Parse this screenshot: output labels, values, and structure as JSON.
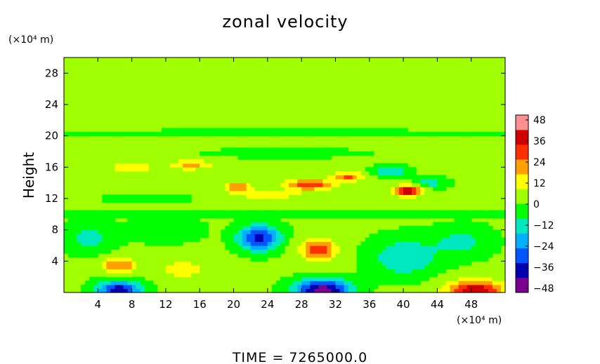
{
  "chart_data": {
    "type": "heatmap",
    "title": "zonal velocity",
    "ylabel": "Height",
    "xlabel": "",
    "x_unit": "(×10⁴ m)",
    "y_unit": "(×10⁴ m)",
    "xlim": [
      0,
      52
    ],
    "ylim": [
      0,
      30
    ],
    "x_ticks": [
      4,
      8,
      12,
      16,
      20,
      24,
      28,
      32,
      36,
      40,
      44,
      48
    ],
    "y_ticks": [
      4,
      8,
      12,
      16,
      20,
      24,
      28
    ],
    "colorbar": {
      "min": -48,
      "max": 48,
      "ticks": [
        48,
        36,
        24,
        12,
        0,
        -12,
        -24,
        -36,
        -48
      ],
      "colors": [
        "#7a0090",
        "#0000b0",
        "#0055ff",
        "#00b0ff",
        "#00e8c0",
        "#00ff00",
        "#a0ff00",
        "#ffff00",
        "#ffa000",
        "#ff3000",
        "#d00000",
        "#ff9090"
      ]
    },
    "background_value": 0,
    "features": [
      {
        "x": 6.5,
        "y": 0.4,
        "value": -36,
        "sx": 2.6,
        "sy": 1.1
      },
      {
        "x": 30.5,
        "y": 0.4,
        "value": -44,
        "sx": 3.2,
        "sy": 1.3
      },
      {
        "x": 48.5,
        "y": 0.4,
        "value": 38,
        "sx": 3.5,
        "sy": 1.2
      },
      {
        "x": 23.0,
        "y": 7.0,
        "value": -34,
        "sx": 2.4,
        "sy": 1.6
      },
      {
        "x": 30.0,
        "y": 5.5,
        "value": 30,
        "sx": 2.2,
        "sy": 1.4
      },
      {
        "x": 6.5,
        "y": 3.5,
        "value": 26,
        "sx": 2.0,
        "sy": 1.0
      },
      {
        "x": 14.0,
        "y": 3.0,
        "value": 14,
        "sx": 2.5,
        "sy": 1.2
      },
      {
        "x": 40.0,
        "y": 4.5,
        "value": -14,
        "sx": 4.0,
        "sy": 2.5
      },
      {
        "x": 47.0,
        "y": 6.5,
        "value": -10,
        "sx": 3.5,
        "sy": 2.0
      },
      {
        "x": 3.0,
        "y": 7.0,
        "value": -10,
        "sx": 3.0,
        "sy": 2.0
      },
      {
        "x": 12.0,
        "y": 8.0,
        "value": -8,
        "sx": 4.0,
        "sy": 1.5
      },
      {
        "x": 40.5,
        "y": 13.0,
        "value": 40,
        "sx": 1.8,
        "sy": 0.7
      },
      {
        "x": 29.0,
        "y": 13.8,
        "value": 30,
        "sx": 3.0,
        "sy": 0.7
      },
      {
        "x": 20.5,
        "y": 13.5,
        "value": 24,
        "sx": 1.6,
        "sy": 0.6
      },
      {
        "x": 33.5,
        "y": 14.8,
        "value": 26,
        "sx": 1.8,
        "sy": 0.6
      },
      {
        "x": 15.0,
        "y": 16.3,
        "value": 20,
        "sx": 2.5,
        "sy": 0.6
      },
      {
        "x": 8.0,
        "y": 16.0,
        "value": 14,
        "sx": 3.0,
        "sy": 0.8
      },
      {
        "x": 38.5,
        "y": 15.5,
        "value": -16,
        "sx": 2.0,
        "sy": 0.6
      },
      {
        "x": 43.0,
        "y": 14.0,
        "value": -12,
        "sx": 2.0,
        "sy": 0.7
      },
      {
        "x": 24.0,
        "y": 12.5,
        "value": 12,
        "sx": 5.0,
        "sy": 0.6
      },
      {
        "x": 26.0,
        "y": 17.8,
        "value": -8,
        "sx": 8.0,
        "sy": 0.5
      },
      {
        "x": 10.0,
        "y": 12.0,
        "value": -6,
        "sx": 5.0,
        "sy": 0.6
      },
      {
        "x": 26.0,
        "y": 20.4,
        "value": -8,
        "sx": 26.0,
        "sy": 0.3
      },
      {
        "x": 26.0,
        "y": 10.0,
        "value": -7,
        "sx": 26.0,
        "sy": 0.4
      },
      {
        "x": 26.0,
        "y": 11.2,
        "value": 5,
        "sx": 26.0,
        "sy": 0.3
      }
    ]
  },
  "footer": {
    "time_label": "TIME  =  7265000.0"
  }
}
